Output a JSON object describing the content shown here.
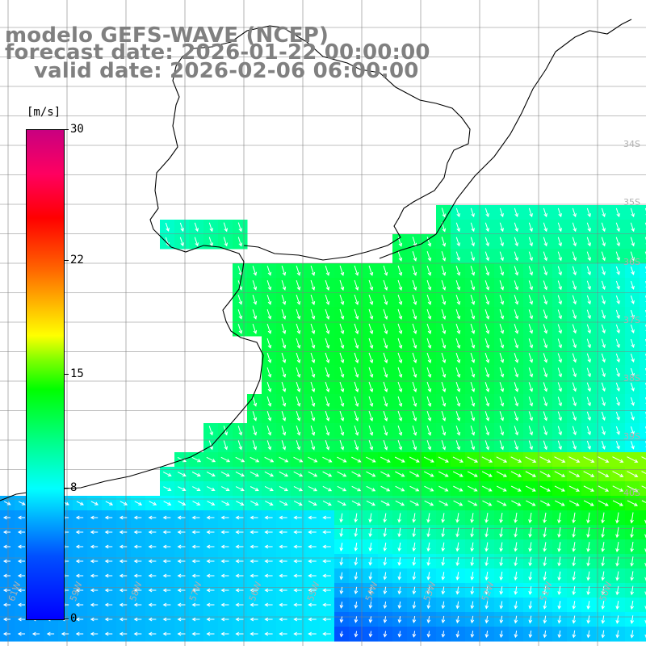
{
  "header": {
    "title_line_1": "modelo GEFS-WAVE (NCEP)",
    "title_line_2": "forecast date: 2026-01-22 00:00:00",
    "title_line_3": "valid date: 2026-02-06 06:00:00",
    "text_color": "#808080"
  },
  "colorbar": {
    "unit": "[m/s]",
    "ticks": [
      {
        "label": "30",
        "value": 30
      },
      {
        "label": "22",
        "value": 22
      },
      {
        "label": "15",
        "value": 15
      },
      {
        "label": "8",
        "value": 8
      },
      {
        "label": "0",
        "value": 0
      }
    ],
    "vmin": 0,
    "vmax": 30,
    "colors": [
      "#0000ff",
      "#00b4ff",
      "#00ffff",
      "#00ff80",
      "#00ff00",
      "#ffff00",
      "#ff6000",
      "#ff0000",
      "#c80080"
    ]
  },
  "map_labels": {
    "longitudes": [
      "61W",
      "59W",
      "58W",
      "57W",
      "56W",
      "55W",
      "54W",
      "53W",
      "52W",
      "51W",
      "50W"
    ],
    "latitudes": [
      "34S",
      "35S",
      "36S",
      "37S",
      "38S",
      "39S",
      "40S"
    ]
  },
  "colors": {
    "land": "#ffffff",
    "coastline": "#000000",
    "grid": "#808080",
    "arrows": "#ffffff"
  }
}
